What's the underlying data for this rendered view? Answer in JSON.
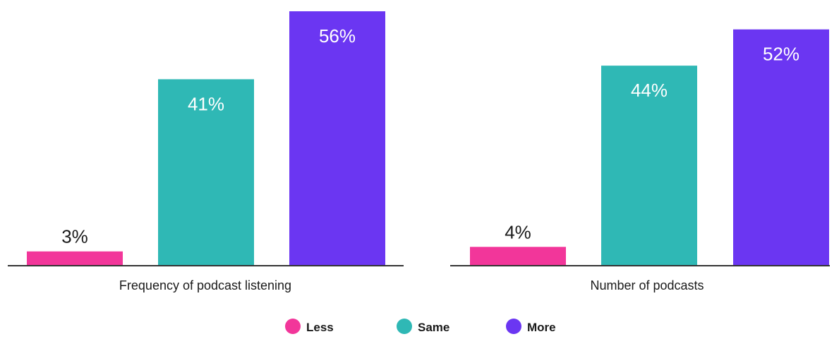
{
  "chart_data": {
    "type": "bar",
    "title": "",
    "xlabel": "",
    "ylabel": "",
    "ylim": [
      0,
      56
    ],
    "grid": false,
    "legend_position": "bottom-center",
    "categories": [
      "Frequency of podcast listening",
      "Number of podcasts"
    ],
    "series": [
      {
        "name": "Less",
        "color": "#f2369a",
        "values": [
          3,
          4
        ],
        "labels": [
          "3%",
          "4%"
        ]
      },
      {
        "name": "Same",
        "color": "#2fb8b5",
        "values": [
          41,
          44
        ],
        "labels": [
          "41%",
          "44%"
        ]
      },
      {
        "name": "More",
        "color": "#6b36f2",
        "values": [
          56,
          52
        ],
        "labels": [
          "56%",
          "52%"
        ]
      }
    ]
  },
  "colors": {
    "axis": "#333333",
    "label_inside": "#ffffff",
    "label_outside": "#1a1a1a"
  }
}
